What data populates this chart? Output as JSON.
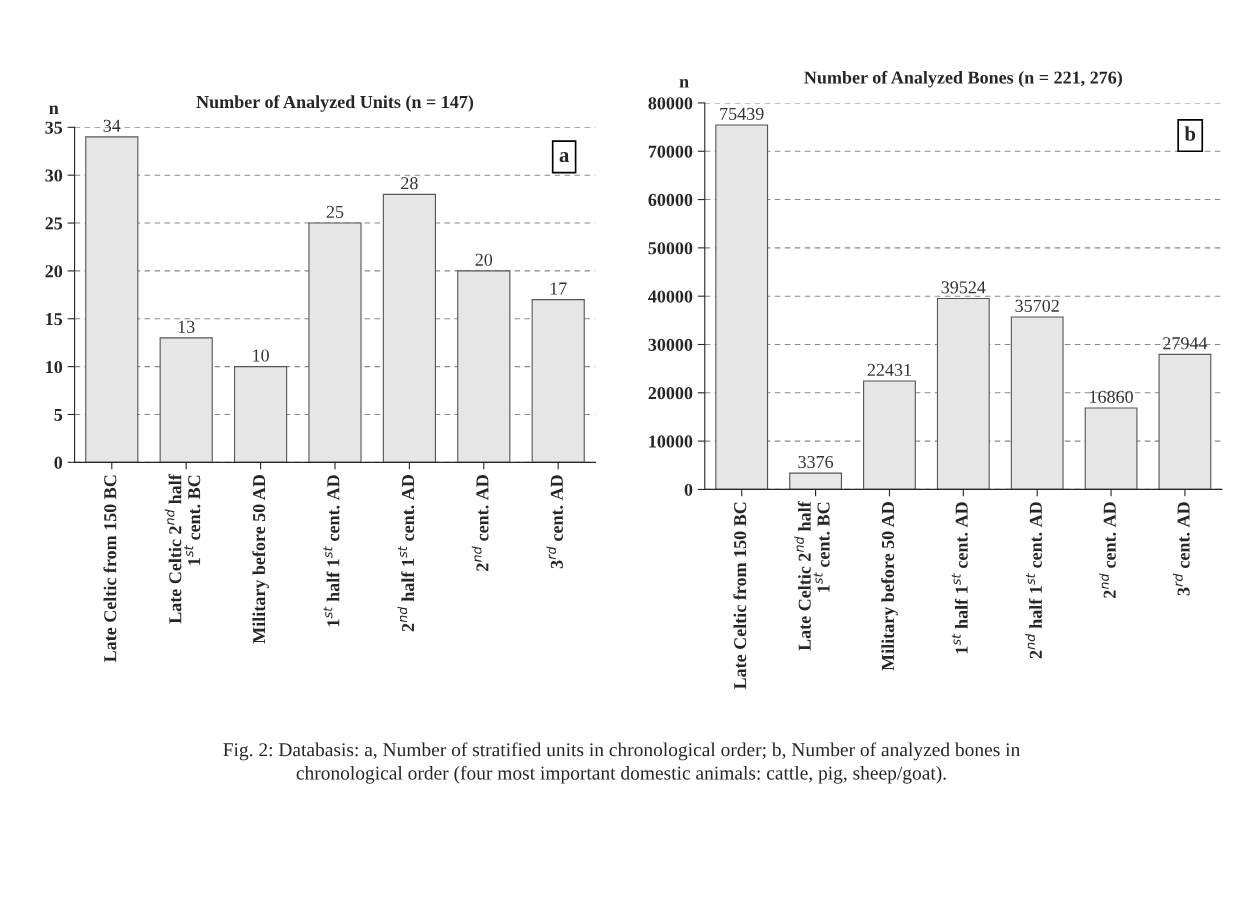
{
  "chart_data": [
    {
      "type": "bar",
      "title": "Number of Analyzed Units (n = 147)",
      "ylabel": "n",
      "categories": [
        "Late Celtic from 150 BC",
        "Late Celtic 2$^{nd}$ half\n1$^{st}$ cent. BC",
        "Military before 50 AD",
        "1$^{st}$ half 1$^{st}$ cent. AD",
        "2$^{nd}$ half 1$^{st}$ cent. AD",
        "2$^{nd}$ cent. AD",
        "3$^{rd}$ cent. AD"
      ],
      "values": [
        34,
        13,
        10,
        25,
        28,
        20,
        17
      ],
      "color": "#e6e6e6",
      "ylim": [
        0,
        35
      ],
      "yticks": [
        0,
        5,
        10,
        15,
        20,
        25,
        30,
        35
      ],
      "grid": "y",
      "data_labels": true,
      "annotations": [
        "a",
        "Fig. 2: Databasis: a, Number of stratified units in chronological order; b, Number of analyzed bones in\nchronological order (four most important domestic animals: cattle, pig, sheep/goat)."
      ]
    },
    {
      "type": "bar",
      "title": "Number of Analyzed Bones (n = 221, 276)",
      "ylabel": "n",
      "categories": [
        "Late Celtic from 150 BC",
        "Late Celtic 2$^{nd}$ half\n1$^{st}$ cent. BC",
        "Military before 50 AD",
        "1$^{st}$ half 1$^{st}$ cent. AD",
        "2$^{nd}$ half 1$^{st}$ cent. AD",
        "2$^{nd}$ cent. AD",
        "3$^{rd}$ cent. AD"
      ],
      "values": [
        75439,
        3376,
        22431,
        39524,
        35702,
        16860,
        27944
      ],
      "color": "#e6e6e6",
      "ylim": [
        0,
        80000
      ],
      "yticks": [
        0,
        10000,
        20000,
        30000,
        40000,
        50000,
        60000,
        70000,
        80000
      ],
      "grid": "y",
      "data_labels": true,
      "annotations": [
        "b"
      ]
    }
  ]
}
